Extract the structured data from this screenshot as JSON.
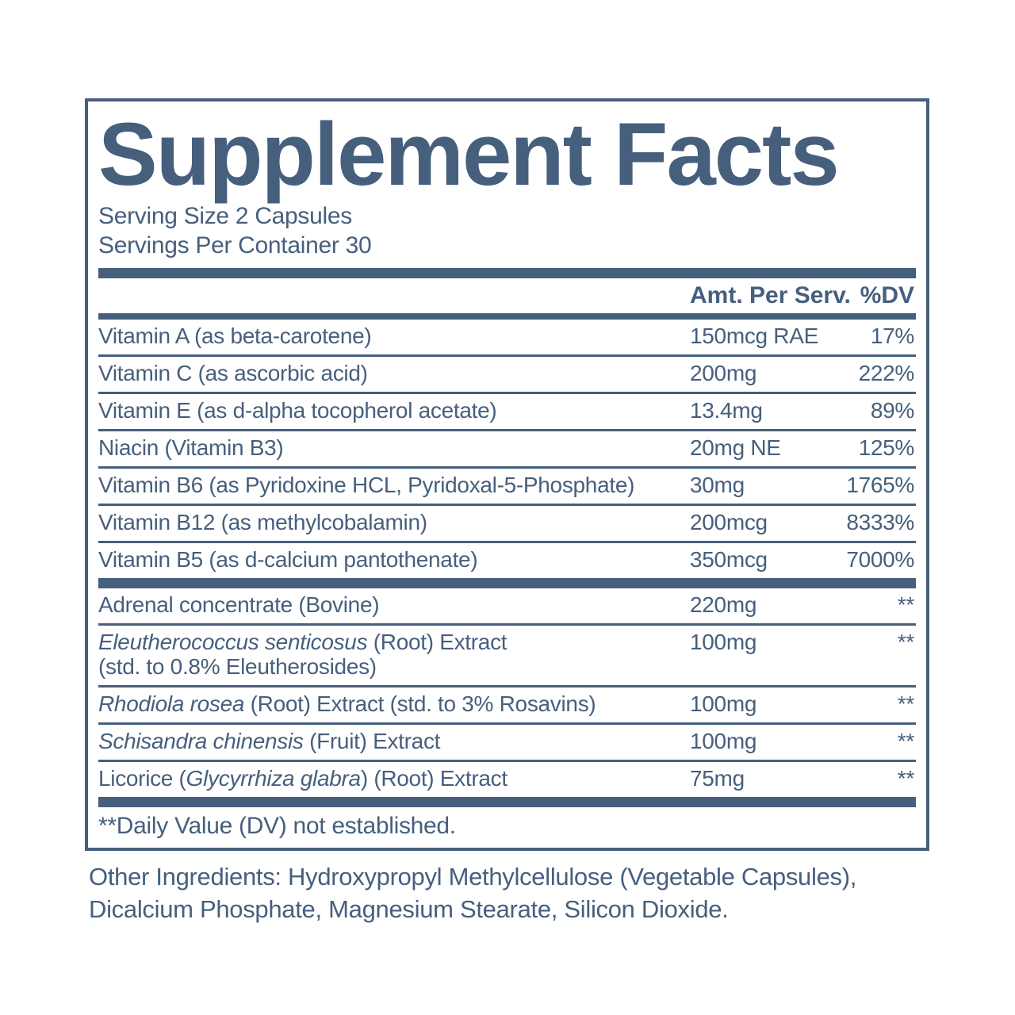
{
  "colors": {
    "ink": "#465f7d",
    "page_background": "#ffffff"
  },
  "panel": {
    "title": "Supplement Facts",
    "serving_size": "Serving Size 2 Capsules",
    "servings_per_container": "Servings Per Container 30",
    "table": {
      "header": {
        "amount_label": "Amt. Per Serv.",
        "dv_label": "%DV"
      },
      "groups": [
        {
          "rows": [
            {
              "name": [
                {
                  "text": "Vitamin A (as beta-carotene)"
                }
              ],
              "amount": "150mcg RAE",
              "dv": "17%"
            },
            {
              "name": [
                {
                  "text": "Vitamin C (as ascorbic acid)"
                }
              ],
              "amount": "200mg",
              "dv": "222%"
            },
            {
              "name": [
                {
                  "text": "Vitamin E (as d-alpha tocopherol acetate)"
                }
              ],
              "amount": "13.4mg",
              "dv": "89%"
            },
            {
              "name": [
                {
                  "text": "Niacin (Vitamin B3)"
                }
              ],
              "amount": "20mg NE",
              "dv": "125%"
            },
            {
              "name": [
                {
                  "text": "Vitamin B6 (as Pyridoxine HCL, Pyridoxal-5-Phosphate)"
                }
              ],
              "amount": "30mg",
              "dv": "1765%"
            },
            {
              "name": [
                {
                  "text": "Vitamin B12 (as methylcobalamin)"
                }
              ],
              "amount": "200mcg",
              "dv": "8333%"
            },
            {
              "name": [
                {
                  "text": "Vitamin B5 (as d-calcium pantothenate)"
                }
              ],
              "amount": "350mcg",
              "dv": "7000%"
            }
          ]
        },
        {
          "rows": [
            {
              "name": [
                {
                  "text": "Adrenal concentrate (Bovine)"
                }
              ],
              "amount": "220mg",
              "dv": "**"
            },
            {
              "name": [
                {
                  "text": "Eleutherococcus senticosus",
                  "italic": true
                },
                {
                  "text": " (Root) Extract"
                },
                {
                  "text": "(std. to 0.8% Eleutherosides)",
                  "newline": true
                }
              ],
              "amount": "100mg",
              "dv": "**"
            },
            {
              "name": [
                {
                  "text": "Rhodiola rosea",
                  "italic": true
                },
                {
                  "text": " (Root) Extract (std. to 3% Rosavins)"
                }
              ],
              "amount": "100mg",
              "dv": "**"
            },
            {
              "name": [
                {
                  "text": "Schisandra chinensis",
                  "italic": true
                },
                {
                  "text": " (Fruit) Extract"
                }
              ],
              "amount": "100mg",
              "dv": "**"
            },
            {
              "name": [
                {
                  "text": "Licorice ("
                },
                {
                  "text": "Glycyrrhiza glabra",
                  "italic": true
                },
                {
                  "text": ") (Root) Extract"
                }
              ],
              "amount": "75mg",
              "dv": "**"
            }
          ]
        }
      ]
    },
    "footnote": "**Daily Value (DV) not established."
  },
  "other_ingredients": {
    "lines": [
      "Other Ingredients: Hydroxypropyl Methylcellulose (Vegetable Capsules),",
      "Dicalcium Phosphate, Magnesium Stearate, Silicon Dioxide."
    ]
  }
}
